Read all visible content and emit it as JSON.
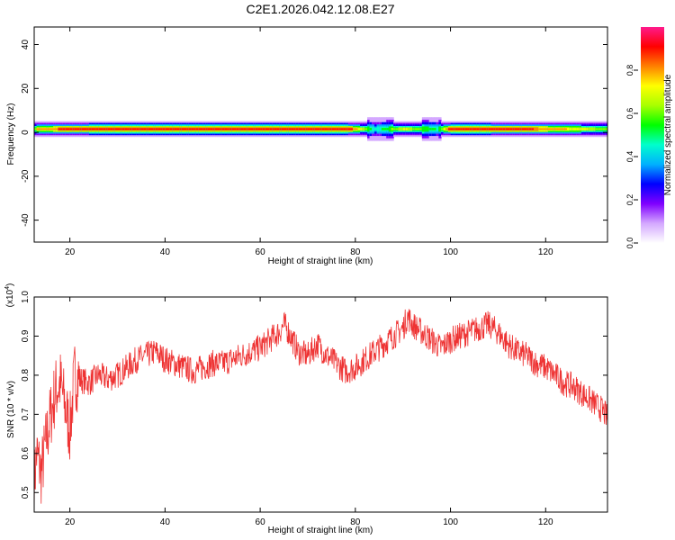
{
  "title": "C2E1.2026.042.12.08.E27",
  "chart_data": [
    {
      "type": "heatmap",
      "xlabel": "Height of straight line (km)",
      "ylabel": "Frequency (Hz)",
      "xlim": [
        12.5,
        133
      ],
      "ylim": [
        -50,
        48
      ],
      "xticks": [
        20,
        40,
        60,
        80,
        100,
        120
      ],
      "yticks": [
        40,
        20,
        0,
        -20,
        -40
      ],
      "colorbar": {
        "label": "Normalized spectral amplitude",
        "ticks": [
          "0.0",
          "0.2",
          "0.4",
          "0.6",
          "0.8"
        ],
        "range": [
          0,
          1
        ],
        "colors": [
          "#ffffff",
          "#d4a8ff",
          "#8000ff",
          "#0000ff",
          "#00b0ff",
          "#00ffcc",
          "#00ff00",
          "#a8ff00",
          "#ffff00",
          "#ff8000",
          "#ff0000",
          "#ff1a8c"
        ]
      },
      "band": {
        "center_hz": 1.5,
        "description_points": [
          {
            "x": 13,
            "peak": 0.8
          },
          {
            "x": 20,
            "peak": 0.9
          },
          {
            "x": 40,
            "peak": 0.95
          },
          {
            "x": 60,
            "peak": 0.95
          },
          {
            "x": 78,
            "peak": 0.95
          },
          {
            "x": 84,
            "peak": 0.45
          },
          {
            "x": 90,
            "peak": 0.7
          },
          {
            "x": 97,
            "peak": 0.5
          },
          {
            "x": 100,
            "peak": 0.95
          },
          {
            "x": 120,
            "peak": 0.85
          },
          {
            "x": 133,
            "peak": 0.6
          }
        ]
      }
    },
    {
      "type": "line",
      "xlabel": "Height of straight line (km)",
      "ylabel": "SNR (10 * v/v)",
      "multiplier": "(x10^4)",
      "xlim": [
        12.5,
        133
      ],
      "ylim": [
        0.45,
        1.0
      ],
      "xticks": [
        20,
        40,
        60,
        80,
        100,
        120
      ],
      "yticks": [
        0.5,
        0.6,
        0.7,
        0.8,
        0.9,
        1.0
      ],
      "series": [
        {
          "color": "#ee3333",
          "x": [
            12.5,
            13,
            14,
            15,
            16,
            17,
            18,
            19,
            20,
            21,
            22,
            24,
            26,
            28,
            30,
            32,
            34,
            36,
            38,
            40,
            42,
            44,
            46,
            48,
            50,
            52,
            54,
            56,
            58,
            60,
            62,
            64,
            65,
            66,
            68,
            70,
            72,
            74,
            76,
            78,
            80,
            82,
            84,
            86,
            88,
            90,
            91,
            92,
            94,
            96,
            98,
            100,
            102,
            104,
            106,
            108,
            109,
            110,
            112,
            114,
            116,
            118,
            120,
            122,
            124,
            126,
            128,
            130,
            132,
            133
          ],
          "y": [
            0.52,
            0.6,
            0.55,
            0.63,
            0.7,
            0.76,
            0.78,
            0.72,
            0.66,
            0.8,
            0.79,
            0.78,
            0.8,
            0.79,
            0.8,
            0.82,
            0.84,
            0.85,
            0.86,
            0.84,
            0.83,
            0.82,
            0.81,
            0.82,
            0.83,
            0.83,
            0.84,
            0.85,
            0.86,
            0.87,
            0.89,
            0.91,
            0.93,
            0.91,
            0.86,
            0.85,
            0.88,
            0.85,
            0.83,
            0.81,
            0.82,
            0.84,
            0.86,
            0.88,
            0.9,
            0.92,
            0.95,
            0.93,
            0.91,
            0.89,
            0.87,
            0.89,
            0.9,
            0.91,
            0.92,
            0.93,
            0.92,
            0.91,
            0.88,
            0.86,
            0.85,
            0.83,
            0.82,
            0.8,
            0.78,
            0.77,
            0.75,
            0.73,
            0.71,
            0.69
          ]
        }
      ]
    }
  ]
}
